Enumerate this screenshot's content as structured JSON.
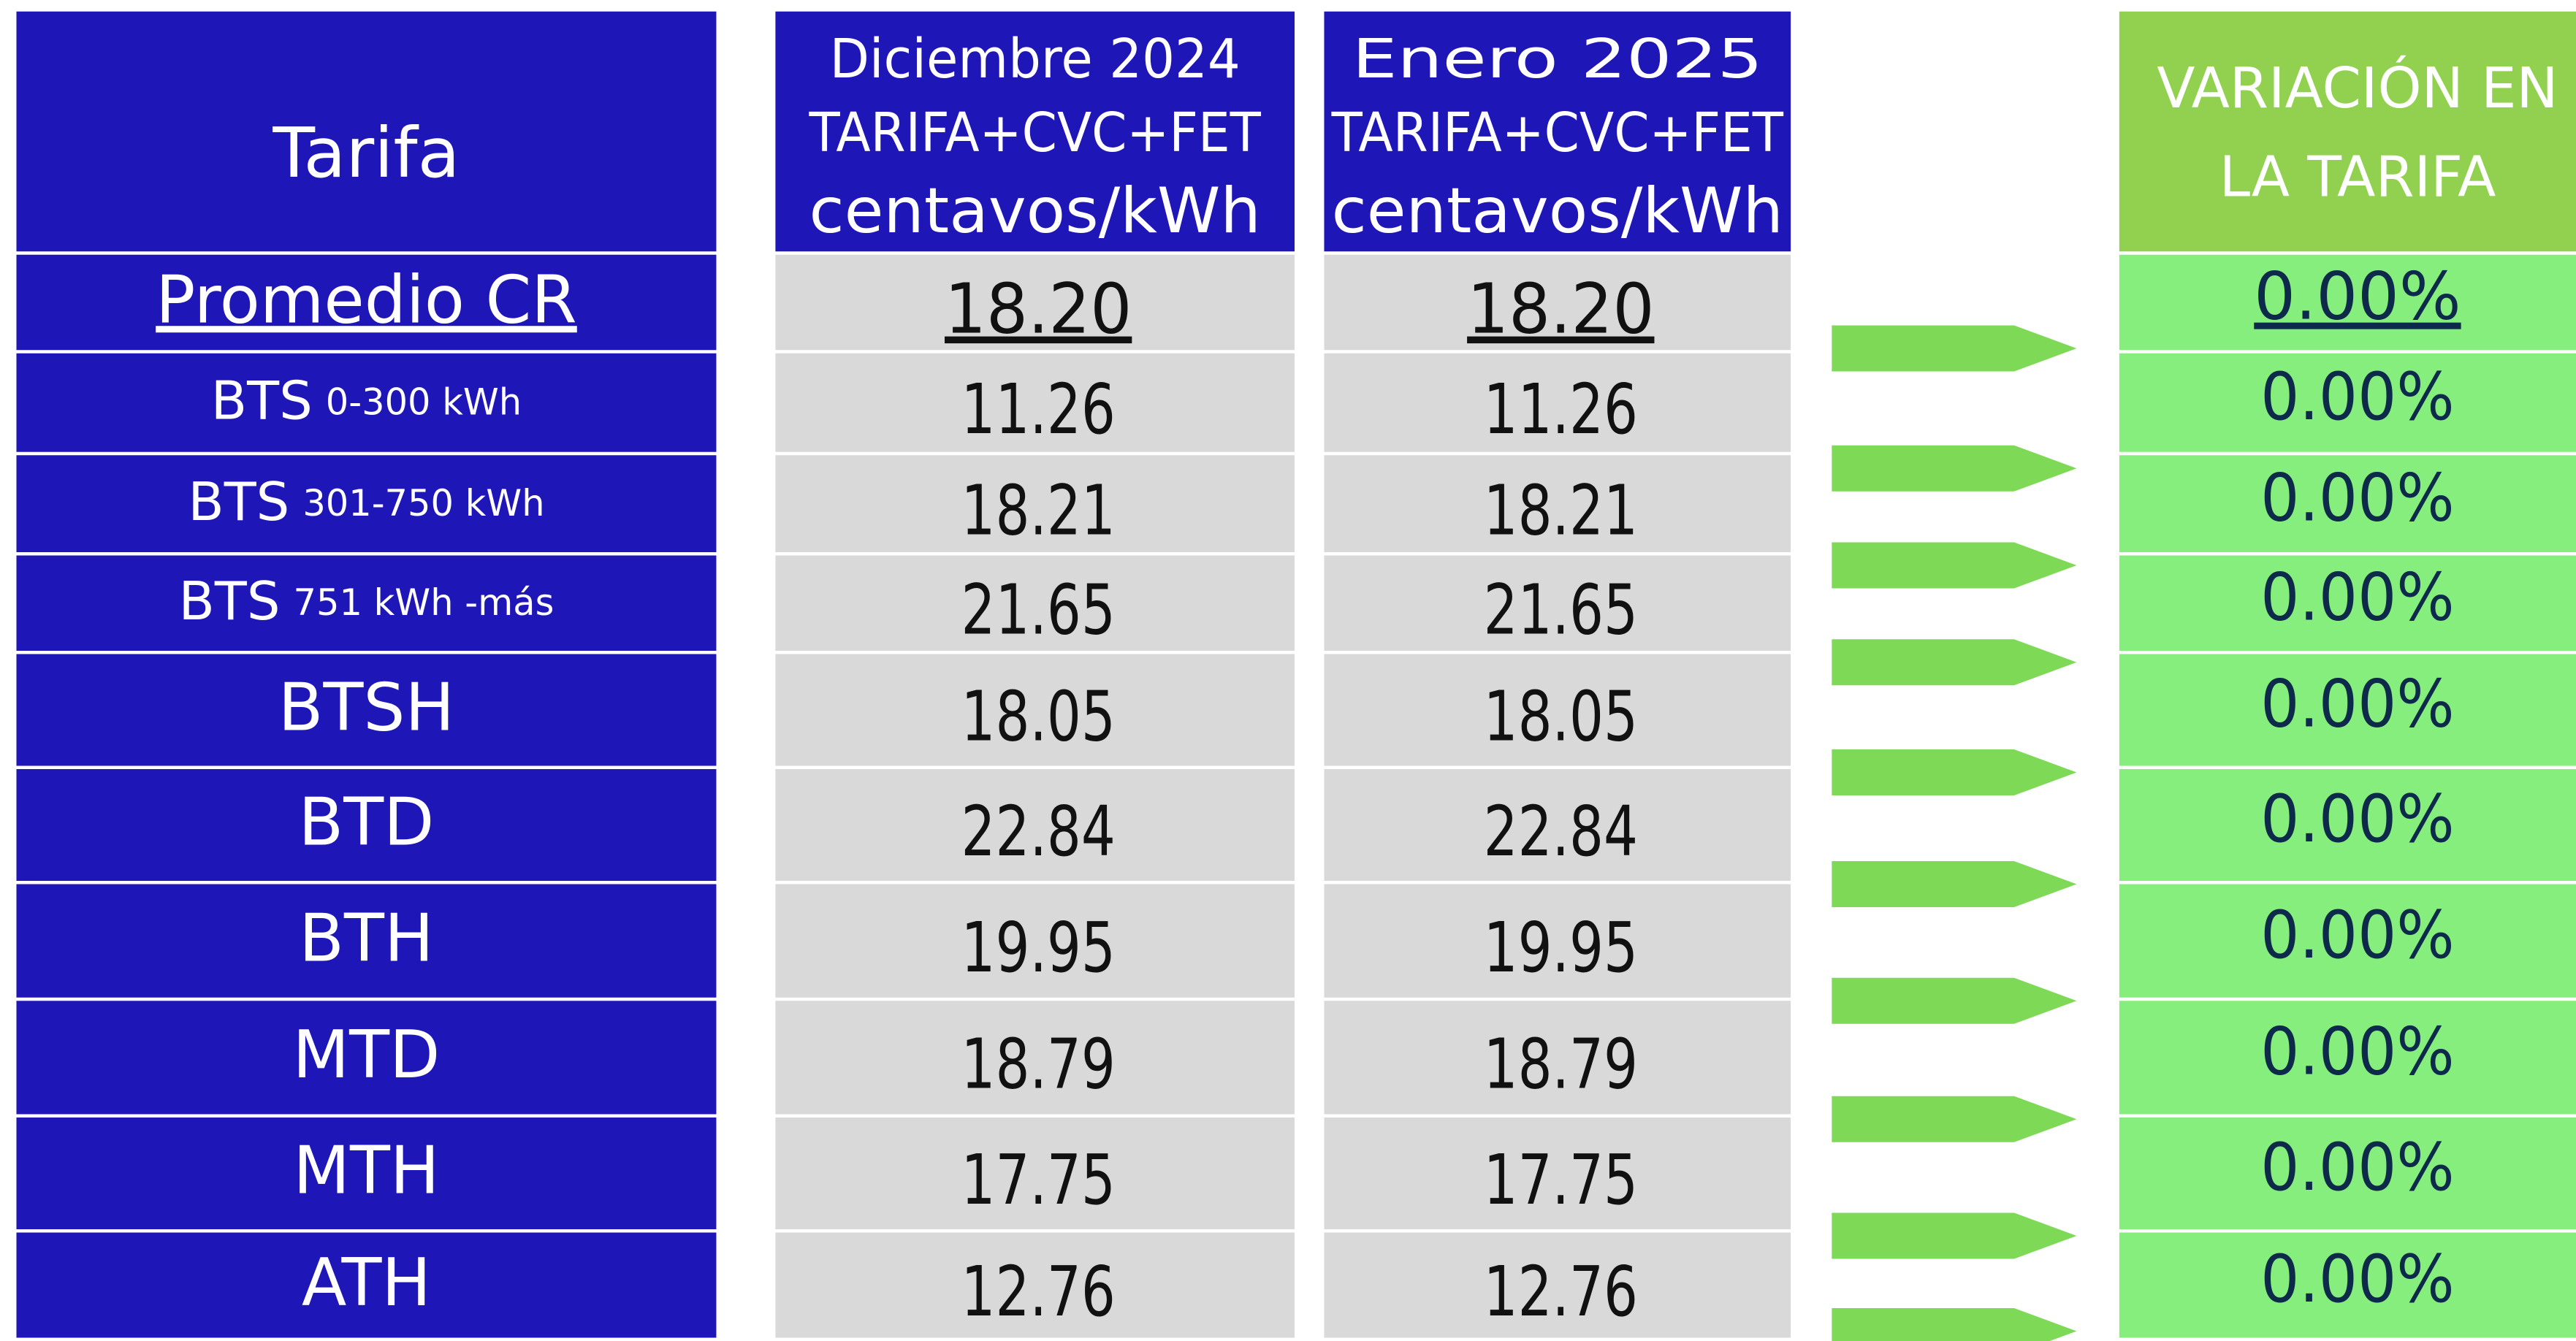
{
  "header": {
    "tarifa": "Tarifa",
    "dic": [
      "Diciembre 2024",
      "TARIFA+CVC+FET",
      "centavos/kWh"
    ],
    "ene": [
      "Enero 2025",
      "TARIFA+CVC+FET",
      "centavos/kWh"
    ],
    "variacion": [
      "VARIACIÓN EN",
      "LA TARIFA"
    ]
  },
  "rows": [
    {
      "tarifa": "Promedio CR",
      "dic": "18.20",
      "ene": "18.20",
      "variacion": "0.00%"
    },
    {
      "tarifa": "BTS",
      "detalle": "0-300 kWh",
      "dic": "11.26",
      "ene": "11.26",
      "variacion": "0.00%"
    },
    {
      "tarifa": "BTS",
      "detalle": "301-750 kWh",
      "dic": "18.21",
      "ene": "18.21",
      "variacion": "0.00%"
    },
    {
      "tarifa": "BTS",
      "detalle": "751 kWh -más",
      "dic": "21.65",
      "ene": "21.65",
      "variacion": "0.00%"
    },
    {
      "tarifa": "BTSH",
      "dic": "18.05",
      "ene": "18.05",
      "variacion": "0.00%"
    },
    {
      "tarifa": "BTD",
      "dic": "22.84",
      "ene": "22.84",
      "variacion": "0.00%"
    },
    {
      "tarifa": "BTH",
      "dic": "19.95",
      "ene": "19.95",
      "variacion": "0.00%"
    },
    {
      "tarifa": "MTD",
      "dic": "18.79",
      "ene": "18.79",
      "variacion": "0.00%"
    },
    {
      "tarifa": "MTH",
      "dic": "17.75",
      "ene": "17.75",
      "variacion": "0.00%"
    },
    {
      "tarifa": "ATH",
      "dic": "12.76",
      "ene": "12.76",
      "variacion": "0.00%"
    }
  ]
}
